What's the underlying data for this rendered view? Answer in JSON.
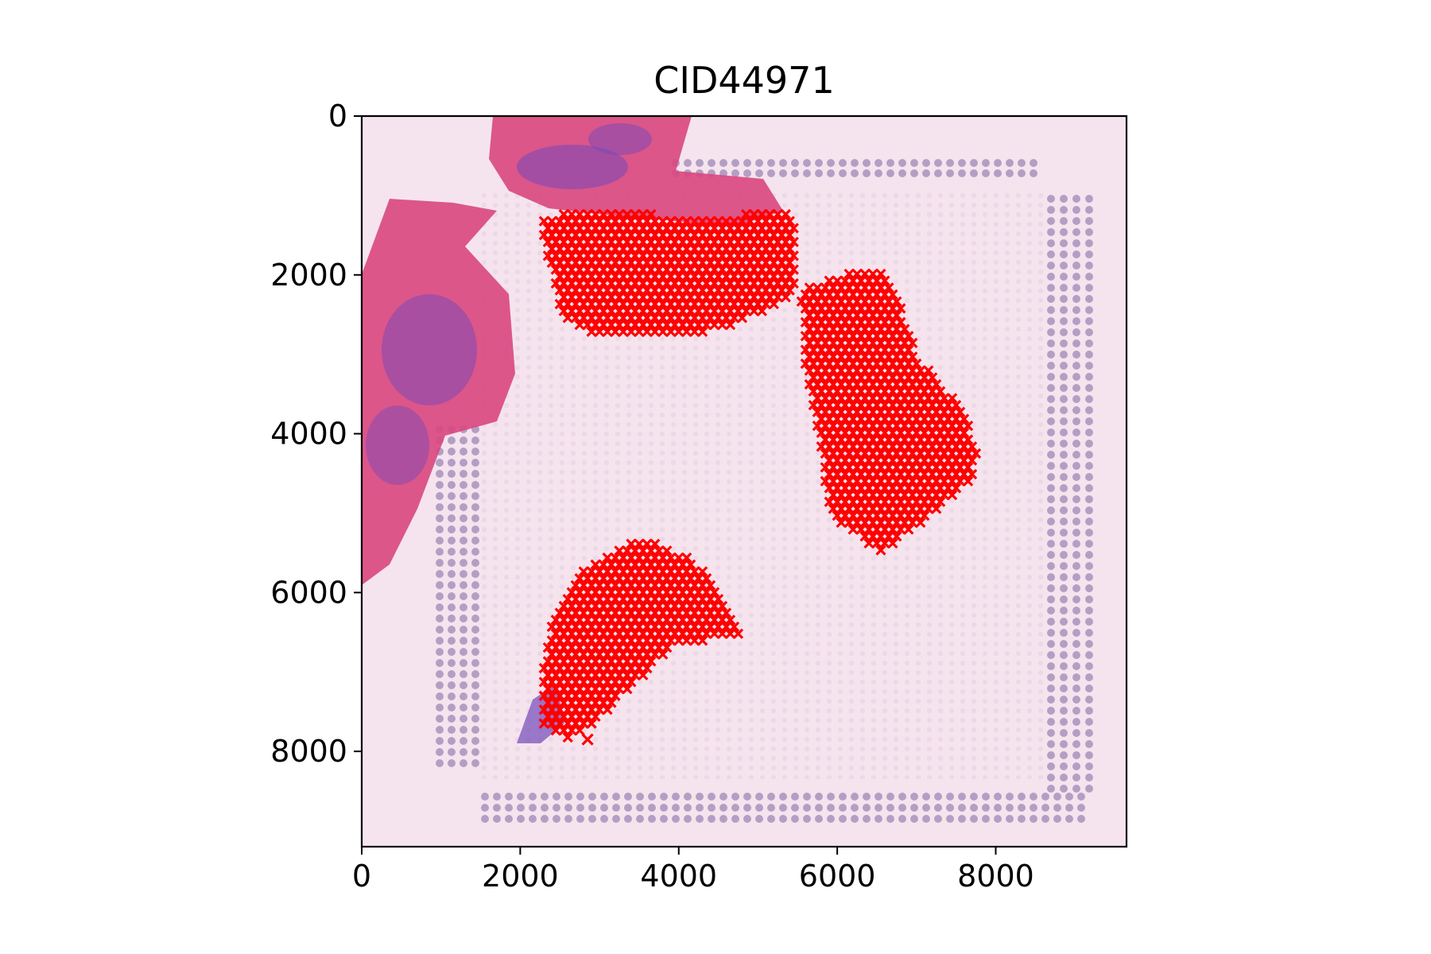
{
  "chart_data": {
    "type": "scatter",
    "title": "CID44971",
    "xlabel": "",
    "ylabel": "",
    "xlim": [
      0,
      9650
    ],
    "ylim": [
      9200,
      0
    ],
    "y_axis_inverted": true,
    "grid": false,
    "legend": "none",
    "xticks": [
      0,
      2000,
      4000,
      6000,
      8000
    ],
    "yticks": [
      0,
      2000,
      4000,
      6000,
      8000
    ],
    "xtick_labels": [
      "0",
      "2000",
      "4000",
      "6000",
      "8000"
    ],
    "ytick_labels": [
      "0",
      "2000",
      "4000",
      "6000",
      "8000"
    ],
    "background": "H&E stained tissue section with fiducial spot frame",
    "marker": "x",
    "marker_color": "#ff0000",
    "regions": [
      {
        "outline": [
          [
            2300,
            1250
          ],
          [
            3000,
            1200
          ],
          [
            4000,
            1250
          ],
          [
            4700,
            1300
          ],
          [
            5000,
            1150
          ],
          [
            5500,
            1250
          ],
          [
            5500,
            2200
          ],
          [
            5000,
            2500
          ],
          [
            4500,
            2700
          ],
          [
            3700,
            2800
          ],
          [
            3000,
            2800
          ],
          [
            2500,
            2500
          ],
          [
            2400,
            2000
          ],
          [
            2300,
            1600
          ]
        ]
      },
      {
        "outline": [
          [
            5500,
            2200
          ],
          [
            6000,
            2000
          ],
          [
            6600,
            1900
          ],
          [
            6800,
            2400
          ],
          [
            7000,
            3000
          ],
          [
            7500,
            3600
          ],
          [
            7800,
            4200
          ],
          [
            7700,
            4600
          ],
          [
            7200,
            5000
          ],
          [
            6600,
            5500
          ],
          [
            6400,
            5400
          ],
          [
            5900,
            5000
          ],
          [
            5800,
            4200
          ],
          [
            5600,
            3200
          ],
          [
            5600,
            2500
          ]
        ]
      },
      {
        "outline": [
          [
            3100,
            5500
          ],
          [
            3600,
            5300
          ],
          [
            4200,
            5600
          ],
          [
            4500,
            6000
          ],
          [
            4700,
            6300
          ],
          [
            4800,
            6600
          ],
          [
            4400,
            6600
          ],
          [
            3900,
            6700
          ],
          [
            3400,
            7200
          ],
          [
            3000,
            7600
          ],
          [
            2600,
            7850
          ],
          [
            2300,
            7700
          ],
          [
            2250,
            7000
          ],
          [
            2400,
            6400
          ],
          [
            2700,
            5800
          ]
        ]
      }
    ],
    "outlier_points": [
      [
        2850,
        7850
      ]
    ]
  },
  "colors": {
    "spot_marker": "#ff0000",
    "slide_background": "#f5e4ee",
    "tissue_pink": "#d9467e",
    "tissue_purple": "#7448b8",
    "fiducial_spot": "#9d88b5"
  }
}
